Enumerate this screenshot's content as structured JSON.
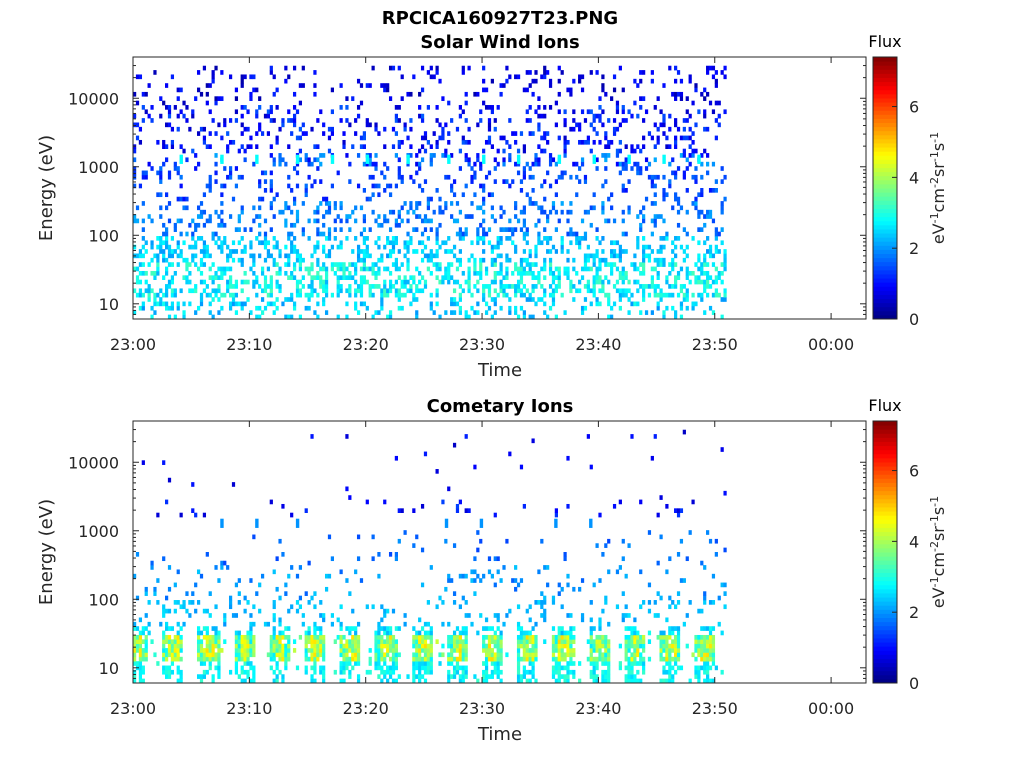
{
  "figure_title": "RPCICA160927T23.PNG",
  "chart_data": [
    {
      "type": "heatmap",
      "title": "Solar Wind Ions",
      "xlabel": "Time",
      "ylabel": "Energy (eV)",
      "x_ticks": [
        "23:00",
        "23:10",
        "23:20",
        "23:30",
        "23:40",
        "23:50",
        "00:00"
      ],
      "x_range": [
        "23:00",
        "00:03"
      ],
      "data_end": "23:51",
      "y_scale": "log",
      "y_ticks": [
        "10",
        "100",
        "1000",
        "10000"
      ],
      "ylim": [
        6,
        40000
      ],
      "colorbar": {
        "label": "Flux",
        "units": "eV-1cm-2sr-1s-1",
        "ticks": [
          "0",
          "2",
          "4",
          "6"
        ],
        "range": [
          0,
          7.4
        ],
        "colormap": "jet"
      },
      "bands": [
        {
          "energy_range": [
            8000,
            30000
          ],
          "density": 0.1,
          "flux_range": [
            0.3,
            1.2
          ]
        },
        {
          "energy_range": [
            1500,
            8000
          ],
          "density": 0.18,
          "flux_range": [
            0.5,
            1.6
          ]
        },
        {
          "energy_range": [
            1000,
            1500
          ],
          "density": 0.2,
          "flux_range": [
            0.8,
            2.2
          ]
        },
        {
          "energy_range": [
            300,
            1000
          ],
          "density": 0.16,
          "flux_range": [
            1.0,
            1.8
          ]
        },
        {
          "energy_range": [
            100,
            300
          ],
          "density": 0.2,
          "flux_range": [
            1.4,
            2.2
          ]
        },
        {
          "energy_range": [
            40,
            100
          ],
          "density": 0.3,
          "flux_range": [
            2.0,
            2.8
          ]
        },
        {
          "energy_range": [
            12,
            40
          ],
          "density": 0.4,
          "flux_range": [
            2.2,
            3.3
          ]
        },
        {
          "energy_range": [
            6,
            12
          ],
          "density": 0.22,
          "flux_range": [
            2.0,
            3.0
          ]
        }
      ],
      "bursts_energy": [
        1100,
        1500
      ],
      "bursts_flux": 2.8,
      "burst_times_min": [
        4,
        7.5,
        10.5,
        14,
        17,
        20,
        23.5,
        27,
        30,
        33,
        36.5,
        39.5,
        42.5,
        45.5,
        48.5
      ]
    },
    {
      "type": "heatmap",
      "title": "Cometary Ions",
      "xlabel": "Time",
      "ylabel": "Energy (eV)",
      "x_ticks": [
        "23:00",
        "23:10",
        "23:20",
        "23:30",
        "23:40",
        "23:50",
        "00:00"
      ],
      "x_range": [
        "23:00",
        "00:03"
      ],
      "data_end": "23:51",
      "y_scale": "log",
      "y_ticks": [
        "10",
        "100",
        "1000",
        "10000"
      ],
      "ylim": [
        6,
        40000
      ],
      "colorbar": {
        "label": "Flux",
        "units": "eV-1cm-2sr-1s-1",
        "ticks": [
          "0",
          "2",
          "4",
          "6"
        ],
        "range": [
          0,
          7.4
        ],
        "colormap": "jet"
      },
      "bands": [
        {
          "energy_range": [
            3000,
            30000
          ],
          "density": 0.012,
          "flux_range": [
            0.5,
            1.2
          ]
        },
        {
          "energy_range": [
            1500,
            3000
          ],
          "density": 0.03,
          "flux_range": [
            0.6,
            1.4
          ]
        },
        {
          "energy_range": [
            300,
            1000
          ],
          "density": 0.03,
          "flux_range": [
            1.4,
            2.0
          ]
        },
        {
          "energy_range": [
            100,
            300
          ],
          "density": 0.08,
          "flux_range": [
            1.6,
            2.4
          ]
        },
        {
          "energy_range": [
            40,
            100
          ],
          "density": 0.12,
          "flux_range": [
            2.0,
            2.6
          ]
        },
        {
          "energy_range": [
            30,
            40
          ],
          "density": 0.2,
          "flux_range": [
            2.2,
            3.0
          ]
        },
        {
          "energy_range": [
            12,
            30
          ],
          "density": 0.55,
          "flux_range": [
            2.6,
            4.3
          ]
        },
        {
          "energy_range": [
            6,
            12
          ],
          "density": 0.18,
          "flux_range": [
            2.4,
            3.2
          ]
        }
      ],
      "bursts_energy": [
        1100,
        1500
      ],
      "bursts_flux": 2.0,
      "burst_times_min": [
        7.5,
        10.5,
        14,
        26.8,
        29.8,
        36.2,
        39.2
      ]
    }
  ]
}
